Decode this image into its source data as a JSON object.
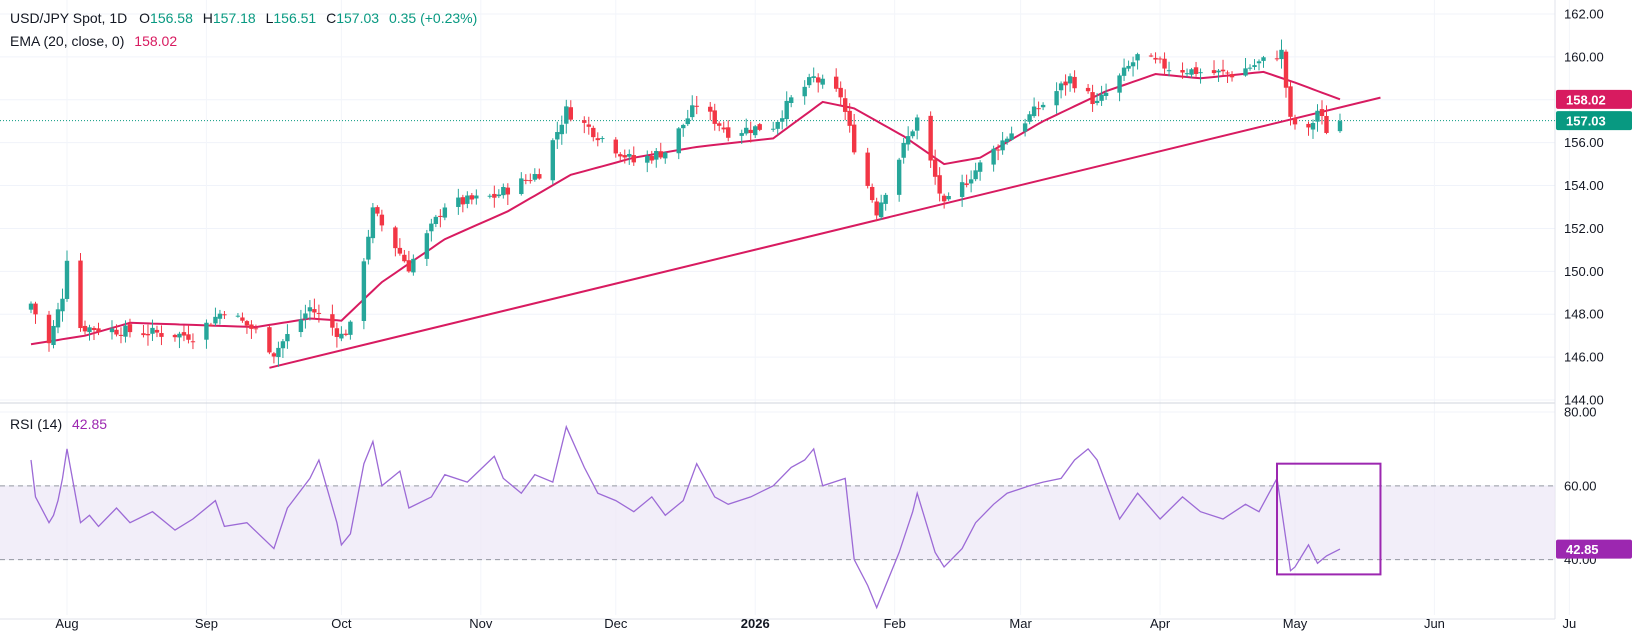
{
  "legend": {
    "symbol": "USD/JPY Spot, 1D",
    "o_label": "O",
    "o": "156.58",
    "h_label": "H",
    "h": "157.18",
    "l_label": "L",
    "l": "156.51",
    "c_label": "C",
    "c": "157.03",
    "change": "0.35 (+0.23%)",
    "ema_label": "EMA (20, close, 0)",
    "ema_value": "158.02",
    "rsi_label": "RSI (14)",
    "rsi_value": "42.85"
  },
  "colors": {
    "up": "#26a69a",
    "down": "#f23645",
    "ema": "#d81b60",
    "trendline": "#d81b60",
    "rsi": "#9c6ad6",
    "rsi_band": "#ede7f6",
    "rsi_box": "#9c27b0",
    "price_line": "#089981"
  },
  "chart_data": [
    {
      "type": "candlestick",
      "title": "USD/JPY Spot, 1D",
      "x_axis_labels": [
        "Aug",
        "Sep",
        "Oct",
        "Nov",
        "Dec",
        "2026",
        "Feb",
        "Mar",
        "Apr",
        "May",
        "Jun",
        "Ju"
      ],
      "y_axis_ticks": [
        "162.00",
        "160.00",
        "158.00",
        "156.00",
        "154.00",
        "152.00",
        "150.00",
        "148.00",
        "146.00",
        "144.00"
      ],
      "ylim": [
        144,
        162
      ],
      "price_badges": [
        {
          "label": "158.02",
          "value": 158.02,
          "color": "#d81b60"
        },
        {
          "label": "157.03",
          "value": 157.03,
          "color": "#089981"
        }
      ],
      "trendline": [
        {
          "date": "2025-09-15",
          "value": 145.5
        },
        {
          "date": "2026-05-20",
          "value": 158.1
        }
      ],
      "ema_anchors": [
        [
          "2025-07-24",
          146.6
        ],
        [
          "2025-08-05",
          147.0
        ],
        [
          "2025-08-15",
          147.6
        ],
        [
          "2025-08-29",
          147.5
        ],
        [
          "2025-09-12",
          147.4
        ],
        [
          "2025-09-24",
          147.8
        ],
        [
          "2025-10-01",
          147.7
        ],
        [
          "2025-10-10",
          149.5
        ],
        [
          "2025-10-24",
          151.5
        ],
        [
          "2025-11-07",
          152.8
        ],
        [
          "2025-11-21",
          154.5
        ],
        [
          "2025-12-05",
          155.3
        ],
        [
          "2025-12-19",
          155.8
        ],
        [
          "2026-01-05",
          156.2
        ],
        [
          "2026-01-16",
          157.9
        ],
        [
          "2026-01-23",
          157.6
        ],
        [
          "2026-02-03",
          156.3
        ],
        [
          "2026-02-12",
          155.0
        ],
        [
          "2026-02-20",
          155.3
        ],
        [
          "2026-03-06",
          157.0
        ],
        [
          "2026-03-20",
          158.4
        ],
        [
          "2026-03-31",
          159.2
        ],
        [
          "2026-04-10",
          159.0
        ],
        [
          "2026-04-24",
          159.3
        ],
        [
          "2026-05-01",
          158.8
        ],
        [
          "2026-05-11",
          158.02
        ]
      ],
      "close_anchors": [
        [
          "2025-07-24",
          148.5
        ],
        [
          "2025-07-28",
          146.6
        ],
        [
          "2025-07-31",
          148.9
        ],
        [
          "2025-08-01",
          150.7
        ],
        [
          "2025-08-04",
          147.4
        ],
        [
          "2025-08-15",
          147.2
        ],
        [
          "2025-08-29",
          147.0
        ],
        [
          "2025-09-05",
          148.2
        ],
        [
          "2025-09-12",
          147.2
        ],
        [
          "2025-09-16",
          146.2
        ],
        [
          "2025-09-24",
          148.3
        ],
        [
          "2025-10-01",
          147.0
        ],
        [
          "2025-10-03",
          147.4
        ],
        [
          "2025-10-08",
          152.8
        ],
        [
          "2025-10-16",
          150.2
        ],
        [
          "2025-10-24",
          153.1
        ],
        [
          "2025-11-04",
          153.5
        ],
        [
          "2025-11-14",
          154.6
        ],
        [
          "2025-11-20",
          157.5
        ],
        [
          "2025-11-28",
          156.2
        ],
        [
          "2025-12-05",
          155.1
        ],
        [
          "2025-12-12",
          155.6
        ],
        [
          "2025-12-19",
          157.8
        ],
        [
          "2025-12-26",
          156.5
        ],
        [
          "2026-01-05",
          156.8
        ],
        [
          "2026-01-09",
          158.0
        ],
        [
          "2026-01-14",
          159.0
        ],
        [
          "2026-01-20",
          158.2
        ],
        [
          "2026-01-23",
          155.8
        ],
        [
          "2026-01-28",
          152.8
        ],
        [
          "2026-02-03",
          155.8
        ],
        [
          "2026-02-06",
          157.1
        ],
        [
          "2026-02-12",
          153.0
        ],
        [
          "2026-02-18",
          154.5
        ],
        [
          "2026-02-26",
          156.3
        ],
        [
          "2026-03-06",
          157.8
        ],
        [
          "2026-03-12",
          159.0
        ],
        [
          "2026-03-18",
          157.8
        ],
        [
          "2026-03-27",
          160.0
        ],
        [
          "2026-04-03",
          159.5
        ],
        [
          "2026-04-10",
          159.3
        ],
        [
          "2026-04-17",
          159.2
        ],
        [
          "2026-04-24",
          159.8
        ],
        [
          "2026-04-28",
          160.2
        ],
        [
          "2026-04-30",
          157.0
        ],
        [
          "2026-05-04",
          156.5
        ],
        [
          "2026-05-06",
          157.5
        ],
        [
          "2026-05-08",
          156.6
        ],
        [
          "2026-05-11",
          157.03
        ]
      ]
    },
    {
      "type": "line",
      "title": "RSI (14)",
      "y_axis_ticks": [
        "80.00",
        "60.00",
        "40.00"
      ],
      "ylim": [
        25,
        80
      ],
      "band": [
        40,
        60
      ],
      "current": {
        "label": "42.85",
        "value": 42.85
      },
      "highlight_box": {
        "from": "2026-04-27",
        "to": "2026-05-20",
        "ymin": 36,
        "ymax": 66
      },
      "series": [
        [
          "2025-07-24",
          67
        ],
        [
          "2025-07-25",
          57
        ],
        [
          "2025-07-28",
          50
        ],
        [
          "2025-07-29",
          52
        ],
        [
          "2025-07-30",
          56
        ],
        [
          "2025-07-31",
          62
        ],
        [
          "2025-08-01",
          70
        ],
        [
          "2025-08-04",
          50
        ],
        [
          "2025-08-06",
          52
        ],
        [
          "2025-08-08",
          49
        ],
        [
          "2025-08-12",
          54
        ],
        [
          "2025-08-15",
          50
        ],
        [
          "2025-08-20",
          53
        ],
        [
          "2025-08-25",
          48
        ],
        [
          "2025-08-29",
          51
        ],
        [
          "2025-09-03",
          56
        ],
        [
          "2025-09-05",
          49
        ],
        [
          "2025-09-10",
          50
        ],
        [
          "2025-09-16",
          43
        ],
        [
          "2025-09-19",
          54
        ],
        [
          "2025-09-24",
          62
        ],
        [
          "2025-09-26",
          67
        ],
        [
          "2025-09-30",
          50
        ],
        [
          "2025-10-01",
          44
        ],
        [
          "2025-10-03",
          47
        ],
        [
          "2025-10-06",
          66
        ],
        [
          "2025-10-08",
          72
        ],
        [
          "2025-10-10",
          60
        ],
        [
          "2025-10-14",
          64
        ],
        [
          "2025-10-16",
          54
        ],
        [
          "2025-10-21",
          57
        ],
        [
          "2025-10-24",
          63
        ],
        [
          "2025-10-29",
          61
        ],
        [
          "2025-11-04",
          68
        ],
        [
          "2025-11-06",
          62
        ],
        [
          "2025-11-10",
          58
        ],
        [
          "2025-11-13",
          63
        ],
        [
          "2025-11-17",
          61
        ],
        [
          "2025-11-20",
          76
        ],
        [
          "2025-11-24",
          65
        ],
        [
          "2025-11-27",
          58
        ],
        [
          "2025-12-01",
          56
        ],
        [
          "2025-12-05",
          53
        ],
        [
          "2025-12-09",
          57
        ],
        [
          "2025-12-12",
          52
        ],
        [
          "2025-12-16",
          56
        ],
        [
          "2025-12-19",
          66
        ],
        [
          "2025-12-23",
          57
        ],
        [
          "2025-12-26",
          55
        ],
        [
          "2025-12-31",
          57
        ],
        [
          "2026-01-05",
          60
        ],
        [
          "2026-01-09",
          65
        ],
        [
          "2026-01-12",
          67
        ],
        [
          "2026-01-14",
          70
        ],
        [
          "2026-01-16",
          60
        ],
        [
          "2026-01-21",
          62
        ],
        [
          "2026-01-23",
          40
        ],
        [
          "2026-01-26",
          33
        ],
        [
          "2026-01-28",
          27
        ],
        [
          "2026-02-02",
          42
        ],
        [
          "2026-02-05",
          53
        ],
        [
          "2026-02-06",
          58
        ],
        [
          "2026-02-10",
          42
        ],
        [
          "2026-02-12",
          38
        ],
        [
          "2026-02-16",
          43
        ],
        [
          "2026-02-19",
          50
        ],
        [
          "2026-02-23",
          55
        ],
        [
          "2026-02-26",
          58
        ],
        [
          "2026-03-03",
          60
        ],
        [
          "2026-03-06",
          61
        ],
        [
          "2026-03-10",
          62
        ],
        [
          "2026-03-13",
          67
        ],
        [
          "2026-03-16",
          70
        ],
        [
          "2026-03-18",
          67
        ],
        [
          "2026-03-23",
          51
        ],
        [
          "2026-03-27",
          58
        ],
        [
          "2026-04-01",
          51
        ],
        [
          "2026-04-06",
          57
        ],
        [
          "2026-04-10",
          53
        ],
        [
          "2026-04-15",
          51
        ],
        [
          "2026-04-20",
          55
        ],
        [
          "2026-04-23",
          53
        ],
        [
          "2026-04-27",
          62
        ],
        [
          "2026-04-30",
          37
        ],
        [
          "2026-05-01",
          38
        ],
        [
          "2026-05-04",
          44
        ],
        [
          "2026-05-06",
          39
        ],
        [
          "2026-05-08",
          41
        ],
        [
          "2026-05-11",
          42.85
        ]
      ]
    }
  ]
}
